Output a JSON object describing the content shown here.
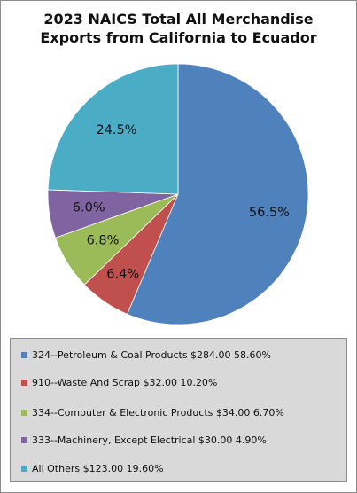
{
  "chart_data": {
    "type": "pie",
    "title": [
      "2023 NAICS Total All Merchandise",
      "Exports from California to Ecuador"
    ],
    "slices": [
      {
        "legend": "324--Petroleum & Coal Products $284.00 58.60%",
        "value": 56.5,
        "label": "56.5%",
        "color": "#4f81bd"
      },
      {
        "legend": "910--Waste And Scrap $32.00 10.20%",
        "value": 6.4,
        "label": "6.4%",
        "color": "#c0504d"
      },
      {
        "legend": "334--Computer & Electronic Products $34.00 6.70%",
        "value": 6.8,
        "label": "6.8%",
        "color": "#9bbb59"
      },
      {
        "legend": "333--Machinery, Except Electrical $30.00 4.90%",
        "value": 6.0,
        "label": "6.0%",
        "color": "#8064a2"
      },
      {
        "legend": "All Others $123.00 19.60%",
        "value": 24.5,
        "label": "24.5%",
        "color": "#4bacc6"
      }
    ],
    "start_angle": "top",
    "direction": "clockwise",
    "legend_position": "bottom"
  }
}
